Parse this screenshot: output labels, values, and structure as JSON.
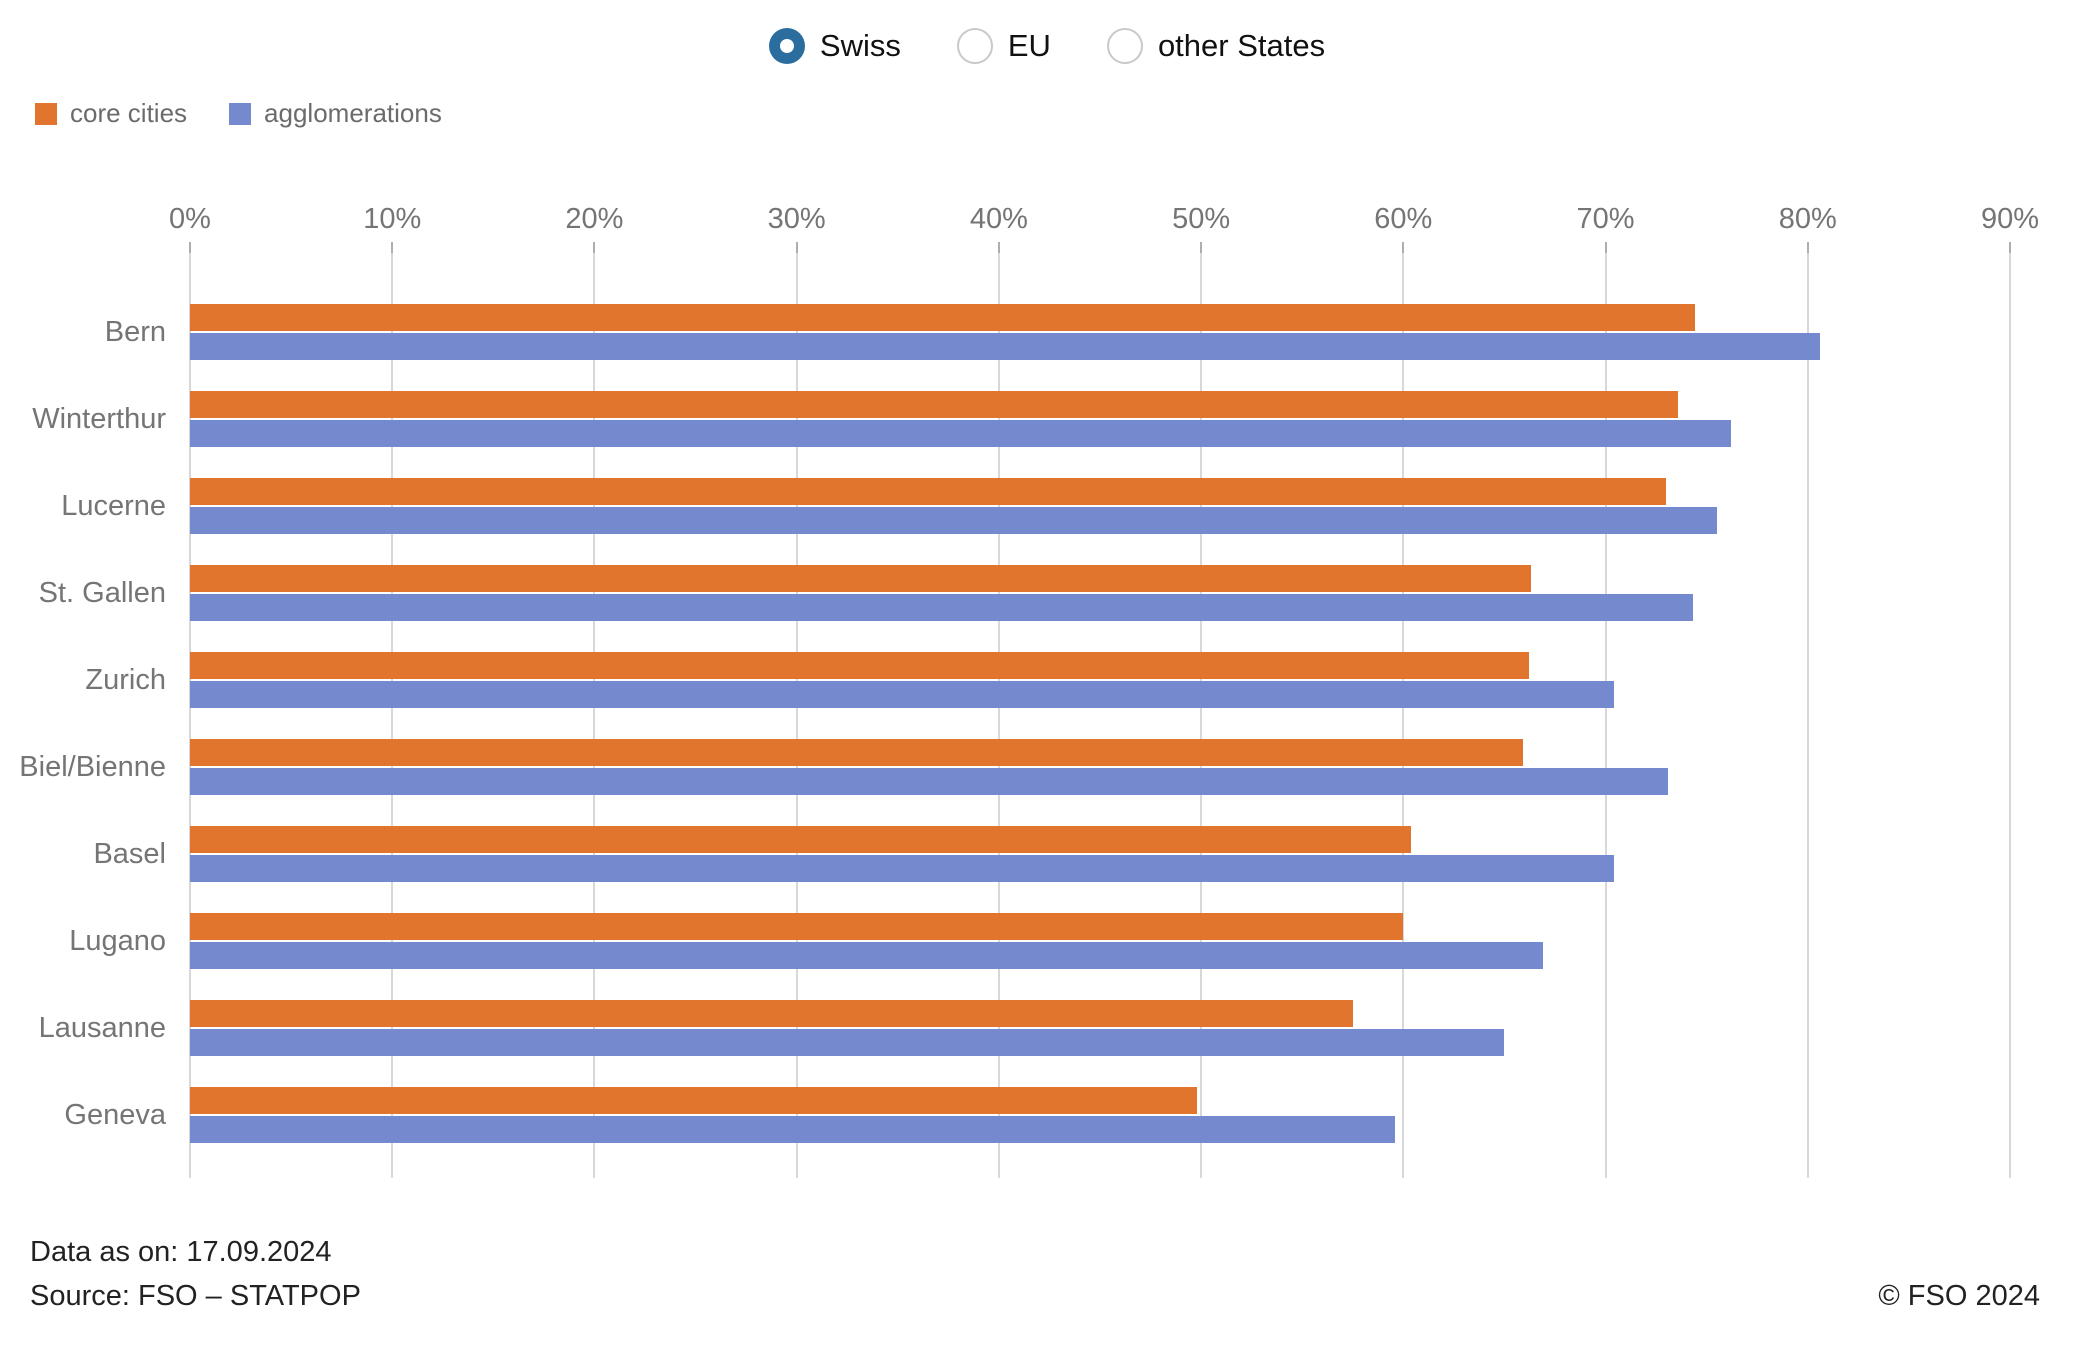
{
  "filters": {
    "options": [
      {
        "label": "Swiss",
        "selected": true
      },
      {
        "label": "EU",
        "selected": false
      },
      {
        "label": "other States",
        "selected": false
      }
    ],
    "selected_color": "#2b6d9e"
  },
  "legend": {
    "items": [
      {
        "label": "core cities",
        "color": "#e2752d"
      },
      {
        "label": "agglomerations",
        "color": "#7589ce"
      }
    ]
  },
  "chart_data": {
    "type": "bar",
    "orientation": "horizontal",
    "title": "",
    "categories": [
      "Bern",
      "Winterthur",
      "Lucerne",
      "St. Gallen",
      "Zurich",
      "Biel/Bienne",
      "Basel",
      "Lugano",
      "Lausanne",
      "Geneva"
    ],
    "series": [
      {
        "name": "core cities",
        "color": "#e2752d",
        "values": [
          74.4,
          73.6,
          73.0,
          66.3,
          66.2,
          65.9,
          60.4,
          60.0,
          57.5,
          49.8
        ]
      },
      {
        "name": "agglomerations",
        "color": "#7589ce",
        "values": [
          80.6,
          76.2,
          75.5,
          74.3,
          70.4,
          73.1,
          70.4,
          66.9,
          65.0,
          59.6
        ]
      }
    ],
    "x_axis": {
      "ticks": [
        "0%",
        "10%",
        "20%",
        "30%",
        "40%",
        "50%",
        "60%",
        "70%",
        "80%",
        "90%"
      ],
      "min": 0,
      "max": 90,
      "unit": "%",
      "position": "top",
      "grid": true
    },
    "legend_position": "top-left"
  },
  "footer": {
    "data_as_on": "Data as on: 17.09.2024",
    "source": "Source: FSO – STATPOP",
    "copyright": "© FSO 2024"
  }
}
